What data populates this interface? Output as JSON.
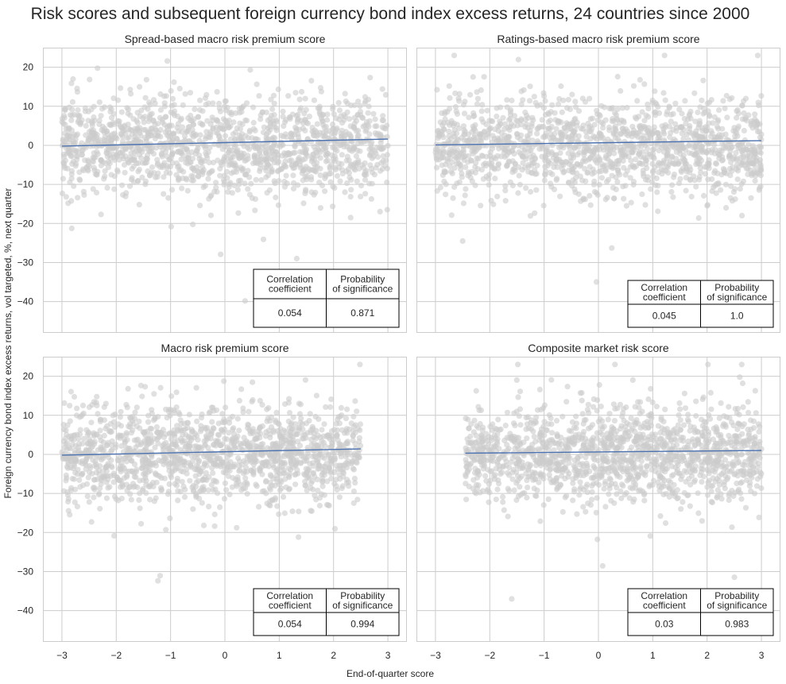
{
  "figure": {
    "title": "Risk scores and subsequent foreign currency bond index excess returns, 24 countries since 2000",
    "xlabel": "End-of-quarter score",
    "ylabel": "Foreign currency bond index excess returns, vol targeted, %, next quarter"
  },
  "colors": {
    "scatter": "#cccccc",
    "regression_line": "#4c72b0",
    "grid": "#cccccc",
    "axes_edge": "#cccccc",
    "text": "#262626"
  },
  "chart_data": [
    {
      "type": "scatter",
      "title": "Spread-based macro risk premium score",
      "xlabel": "",
      "ylabel": "",
      "xlim": [
        -3.35,
        3.35
      ],
      "ylim": [
        -48,
        25
      ],
      "xticks": [
        -3,
        -2,
        -1,
        0,
        1,
        2,
        3
      ],
      "yticks": [
        20,
        10,
        0,
        -10,
        -20,
        -30,
        -40
      ],
      "regression": {
        "x": [
          -3,
          3
        ],
        "y": [
          -0.2,
          1.6
        ]
      },
      "scatter_spec": {
        "x_range": [
          -3,
          3
        ],
        "y_center": 0,
        "y_spread": 6
      },
      "stats_table": {
        "headers": [
          "Correlation\ncoefficient",
          "Probability\nof significance"
        ],
        "values": [
          "0.054",
          "0.871"
        ]
      }
    },
    {
      "type": "scatter",
      "title": "Ratings-based macro risk premium score",
      "xlabel": "",
      "ylabel": "",
      "xlim": [
        -3.35,
        3.35
      ],
      "ylim": [
        -48,
        25
      ],
      "xticks": [
        -3,
        -2,
        -1,
        0,
        1,
        2,
        3
      ],
      "yticks": [
        20,
        10,
        0,
        -10,
        -20,
        -30,
        -40
      ],
      "regression": {
        "x": [
          -3,
          3
        ],
        "y": [
          0.1,
          1.2
        ]
      },
      "scatter_spec": {
        "x_range": [
          -3,
          3
        ],
        "y_center": 0,
        "y_spread": 6
      },
      "stats_table": {
        "headers": [
          "Correlation\ncoefficient",
          "Probability\nof significance"
        ],
        "values": [
          "0.045",
          "1.0"
        ]
      }
    },
    {
      "type": "scatter",
      "title": "Macro risk premium score",
      "xlabel": "",
      "ylabel": "",
      "xlim": [
        -3.35,
        3.35
      ],
      "ylim": [
        -48,
        25
      ],
      "xticks": [
        -3,
        -2,
        -1,
        0,
        1,
        2,
        3
      ],
      "yticks": [
        20,
        10,
        0,
        -10,
        -20,
        -30,
        -40
      ],
      "regression": {
        "x": [
          -3,
          2.5
        ],
        "y": [
          -0.2,
          1.4
        ]
      },
      "scatter_spec": {
        "x_range": [
          -3,
          2.5
        ],
        "y_center": 0,
        "y_spread": 6
      },
      "stats_table": {
        "headers": [
          "Correlation\ncoefficient",
          "Probability\nof significance"
        ],
        "values": [
          "0.054",
          "0.994"
        ]
      }
    },
    {
      "type": "scatter",
      "title": "Composite market risk score",
      "xlabel": "",
      "ylabel": "",
      "xlim": [
        -3.35,
        3.35
      ],
      "ylim": [
        -48,
        25
      ],
      "xticks": [
        -3,
        -2,
        -1,
        0,
        1,
        2,
        3
      ],
      "yticks": [
        20,
        10,
        0,
        -10,
        -20,
        -30,
        -40
      ],
      "regression": {
        "x": [
          -2.45,
          3
        ],
        "y": [
          0.3,
          1.0
        ]
      },
      "scatter_spec": {
        "x_range": [
          -2.45,
          3
        ],
        "y_center": 0,
        "y_spread": 6
      },
      "stats_table": {
        "headers": [
          "Correlation\ncoefficient",
          "Probability\nof significance"
        ],
        "values": [
          "0.03",
          "0.983"
        ]
      }
    }
  ]
}
